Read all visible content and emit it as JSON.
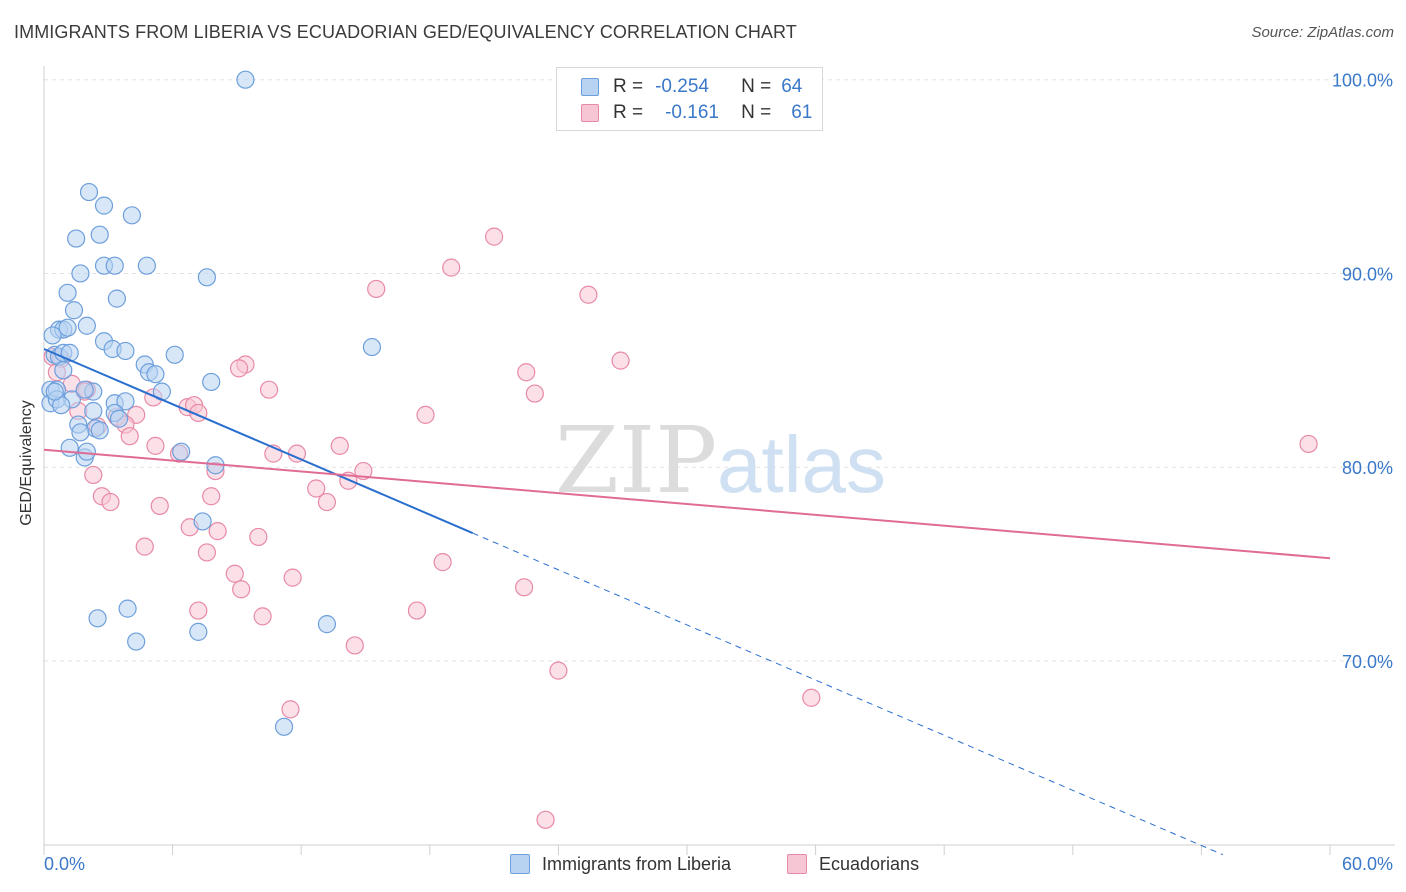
{
  "header": {
    "title": "IMMIGRANTS FROM LIBERIA VS ECUADORIAN GED/EQUIVALENCY CORRELATION CHART",
    "source": "Source: ZipAtlas.com"
  },
  "legend": {
    "rows": [
      {
        "r_label": "R =",
        "r_value": "-0.254",
        "n_label": "N =",
        "n_value": "64"
      },
      {
        "r_label": "R =",
        "r_value": "-0.161",
        "n_label": "N =",
        "n_value": "61"
      }
    ]
  },
  "bottom_legend": {
    "series_a": "Immigrants from Liberia",
    "series_b": "Ecuadorians"
  },
  "watermark": {
    "zip": "ZIP",
    "atlas": "atlas"
  },
  "colors": {
    "series_a_fill": "#b8d3f2",
    "series_a_stroke": "#6d9fdc",
    "series_a_line": "#2a6fcf",
    "series_b_fill": "#f7c6d4",
    "series_b_stroke": "#e889a6",
    "series_b_line": "#e06c96",
    "axis_text": "#3a78c9",
    "grid": "#e3e3e3"
  },
  "chart_data": {
    "type": "scatter",
    "title": "IMMIGRANTS FROM LIBERIA VS ECUADORIAN GED/EQUIVALENCY CORRELATION CHART",
    "xlabel": "",
    "ylabel": "GED/Equivalency",
    "xlim": [
      0,
      60
    ],
    "ylim": [
      60.5,
      100.5
    ],
    "x_tick_labels": [
      "0.0%",
      "60.0%"
    ],
    "y_ticks": [
      70,
      80,
      90,
      100
    ],
    "y_tick_labels": [
      "70.0%",
      "80.0%",
      "90.0%",
      "100.0%"
    ],
    "grid": true,
    "legend_position": "top-center",
    "series": [
      {
        "name": "Immigrants from Liberia",
        "r": -0.254,
        "n": 64,
        "trend": {
          "x0": 0,
          "y0": 86.1,
          "x1": 20,
          "y1": 76.6,
          "dashed_to_x": 55,
          "dashed_to_y": 60.0
        },
        "points": [
          [
            9.4,
            100
          ],
          [
            2.1,
            94.2
          ],
          [
            2.8,
            93.5
          ],
          [
            4.1,
            93.0
          ],
          [
            1.5,
            91.8
          ],
          [
            2.6,
            92.0
          ],
          [
            1.7,
            90.0
          ],
          [
            2.8,
            90.4
          ],
          [
            3.3,
            90.4
          ],
          [
            4.8,
            90.4
          ],
          [
            7.6,
            89.8
          ],
          [
            1.1,
            89.0
          ],
          [
            3.4,
            88.7
          ],
          [
            1.4,
            88.1
          ],
          [
            0.7,
            87.1
          ],
          [
            0.9,
            87.1
          ],
          [
            1.1,
            87.2
          ],
          [
            2.0,
            87.3
          ],
          [
            0.4,
            86.8
          ],
          [
            2.8,
            86.5
          ],
          [
            3.2,
            86.1
          ],
          [
            3.8,
            86.0
          ],
          [
            6.1,
            85.8
          ],
          [
            15.3,
            86.2
          ],
          [
            0.5,
            85.8
          ],
          [
            0.7,
            85.7
          ],
          [
            0.9,
            85.9
          ],
          [
            1.2,
            85.9
          ],
          [
            4.7,
            85.3
          ],
          [
            4.9,
            84.9
          ],
          [
            5.2,
            84.8
          ],
          [
            7.8,
            84.4
          ],
          [
            0.3,
            84.0
          ],
          [
            0.6,
            84.0
          ],
          [
            1.3,
            83.5
          ],
          [
            2.3,
            83.9
          ],
          [
            5.5,
            83.9
          ],
          [
            0.3,
            83.3
          ],
          [
            0.6,
            83.5
          ],
          [
            0.8,
            83.2
          ],
          [
            3.3,
            83.3
          ],
          [
            3.8,
            83.4
          ],
          [
            2.3,
            82.9
          ],
          [
            3.3,
            82.8
          ],
          [
            1.6,
            82.2
          ],
          [
            3.5,
            82.5
          ],
          [
            2.4,
            82.0
          ],
          [
            1.7,
            81.8
          ],
          [
            2.6,
            81.9
          ],
          [
            1.2,
            81.0
          ],
          [
            1.9,
            80.5
          ],
          [
            6.4,
            80.8
          ],
          [
            2.0,
            80.8
          ],
          [
            8.0,
            80.1
          ],
          [
            7.4,
            77.2
          ],
          [
            2.5,
            72.2
          ],
          [
            3.9,
            72.7
          ],
          [
            13.2,
            71.9
          ],
          [
            7.2,
            71.5
          ],
          [
            4.3,
            71.0
          ],
          [
            11.2,
            66.6
          ],
          [
            0.9,
            85.0
          ],
          [
            0.5,
            83.9
          ],
          [
            1.9,
            84.0
          ]
        ]
      },
      {
        "name": "Ecuadorians",
        "r": -0.161,
        "n": 61,
        "trend": {
          "x0": 0,
          "y0": 80.9,
          "x1": 60,
          "y1": 75.3
        },
        "points": [
          [
            21.0,
            91.9
          ],
          [
            19.0,
            90.3
          ],
          [
            15.5,
            89.2
          ],
          [
            25.4,
            88.9
          ],
          [
            0.4,
            85.7
          ],
          [
            0.8,
            85.6
          ],
          [
            0.6,
            84.9
          ],
          [
            9.4,
            85.3
          ],
          [
            9.1,
            85.1
          ],
          [
            26.9,
            85.5
          ],
          [
            22.5,
            84.9
          ],
          [
            1.3,
            84.3
          ],
          [
            10.5,
            84.0
          ],
          [
            2.0,
            84.0
          ],
          [
            22.9,
            83.8
          ],
          [
            5.1,
            83.6
          ],
          [
            6.7,
            83.1
          ],
          [
            7.0,
            83.2
          ],
          [
            4.3,
            82.7
          ],
          [
            7.2,
            82.8
          ],
          [
            1.6,
            82.9
          ],
          [
            17.8,
            82.7
          ],
          [
            3.4,
            82.6
          ],
          [
            3.8,
            82.2
          ],
          [
            2.5,
            82.1
          ],
          [
            4.0,
            81.6
          ],
          [
            5.2,
            81.1
          ],
          [
            6.3,
            80.7
          ],
          [
            13.8,
            81.1
          ],
          [
            10.7,
            80.7
          ],
          [
            11.8,
            80.7
          ],
          [
            8.0,
            79.8
          ],
          [
            2.3,
            79.6
          ],
          [
            14.9,
            79.8
          ],
          [
            14.2,
            79.3
          ],
          [
            12.7,
            78.9
          ],
          [
            2.7,
            78.5
          ],
          [
            7.8,
            78.5
          ],
          [
            3.1,
            78.2
          ],
          [
            13.2,
            78.2
          ],
          [
            5.4,
            78.0
          ],
          [
            6.8,
            76.9
          ],
          [
            8.1,
            76.7
          ],
          [
            10.0,
            76.4
          ],
          [
            4.7,
            75.9
          ],
          [
            7.6,
            75.6
          ],
          [
            18.6,
            75.1
          ],
          [
            11.6,
            74.3
          ],
          [
            8.9,
            74.5
          ],
          [
            9.2,
            73.7
          ],
          [
            22.4,
            73.8
          ],
          [
            7.2,
            72.6
          ],
          [
            17.4,
            72.6
          ],
          [
            10.2,
            72.3
          ],
          [
            14.5,
            70.8
          ],
          [
            24.0,
            69.5
          ],
          [
            35.8,
            68.1
          ],
          [
            11.5,
            67.5
          ],
          [
            23.4,
            61.8
          ],
          [
            59.0,
            81.2
          ],
          [
            1.9,
            83.9
          ]
        ]
      }
    ]
  }
}
